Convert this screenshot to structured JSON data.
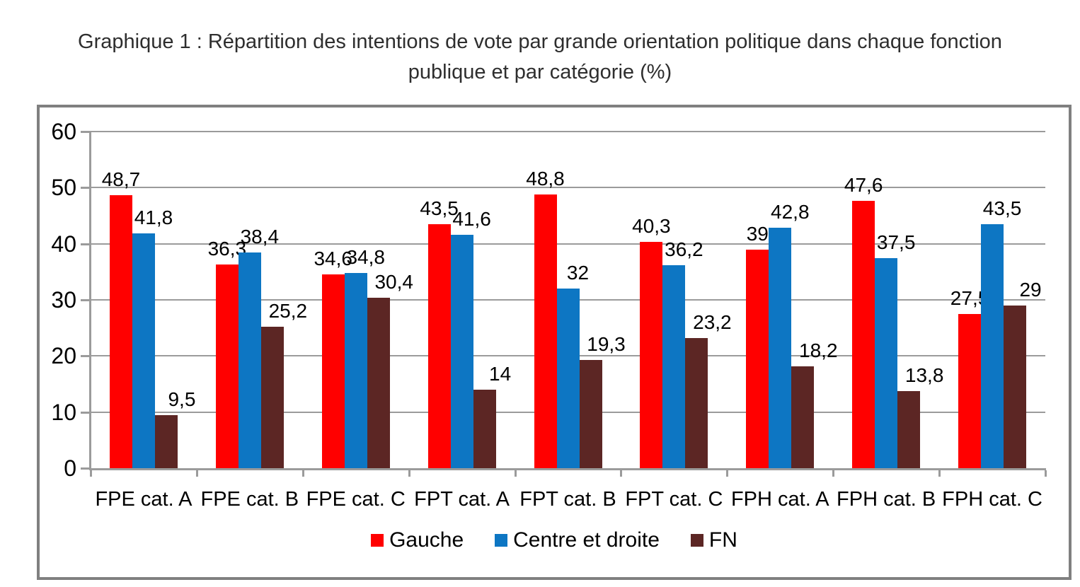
{
  "chart_data": {
    "type": "bar",
    "title": "Graphique 1 : Répartition des intentions de vote par grande orientation politique dans chaque fonction publique et par catégorie (%)",
    "categories": [
      "FPE cat. A",
      "FPE cat. B",
      "FPE cat. C",
      "FPT cat. A",
      "FPT cat. B",
      "FPT cat. C",
      "FPH cat. A",
      "FPH cat. B",
      "FPH cat. C"
    ],
    "series": [
      {
        "name": "Gauche",
        "color": "#ff0000",
        "values": [
          48.7,
          36.3,
          34.6,
          43.5,
          48.8,
          40.3,
          39,
          47.6,
          27.5
        ],
        "labels": [
          "48,7",
          "36,3",
          "34,6",
          "43,5",
          "48,8",
          "40,3",
          "39",
          "47,6",
          "27,5"
        ]
      },
      {
        "name": "Centre et droite",
        "color": "#0d76c3",
        "values": [
          41.8,
          38.4,
          34.8,
          41.6,
          32,
          36.2,
          42.8,
          37.5,
          43.5
        ],
        "labels": [
          "41,8",
          "38,4",
          "34,8",
          "41,6",
          "32",
          "36,2",
          "42,8",
          "37,5",
          "43,5"
        ]
      },
      {
        "name": "FN",
        "color": "#5c2624",
        "values": [
          9.5,
          25.2,
          30.4,
          14,
          19.3,
          23.2,
          18.2,
          13.8,
          29
        ],
        "labels": [
          "9,5",
          "25,2",
          "30,4",
          "14",
          "19,3",
          "23,2",
          "18,2",
          "13,8",
          "29"
        ]
      }
    ],
    "y_axis": {
      "min": 0,
      "max": 60,
      "tick_step": 10,
      "tick_labels": [
        "0",
        "10",
        "20",
        "30",
        "40",
        "50",
        "60"
      ]
    },
    "grid": true,
    "legend_position": "bottom",
    "colors": {
      "gridline": "#9b9b9b",
      "axis": "#9b9b9b",
      "frame_border": "#808080",
      "text": "#000000"
    }
  }
}
